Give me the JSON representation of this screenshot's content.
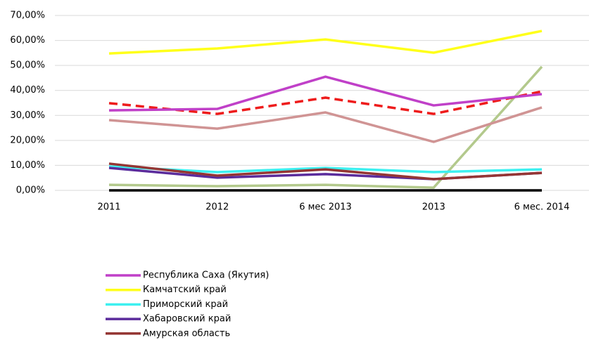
{
  "chart_data": {
    "type": "line",
    "categories": [
      "2011",
      "2012",
      "6 мес 2013",
      "2013",
      "6 мес. 2014"
    ],
    "ylim": [
      0,
      70
    ],
    "yticks": [
      {
        "value": 0,
        "label": "0,00%"
      },
      {
        "value": 10,
        "label": "10,00%"
      },
      {
        "value": 20,
        "label": "20,00%"
      },
      {
        "value": 30,
        "label": "30,00%"
      },
      {
        "value": 40,
        "label": "40,00%"
      },
      {
        "value": 50,
        "label": "50,00%"
      },
      {
        "value": 60,
        "label": "60,00%"
      },
      {
        "value": 70,
        "label": "70,00%"
      }
    ],
    "grid": true,
    "series": [
      {
        "color": "#000000",
        "values": [
          0,
          0,
          0,
          0,
          0
        ]
      },
      {
        "color": "#b3c98c",
        "values": [
          2.2,
          1.7,
          2.2,
          1.1,
          49.5
        ]
      },
      {
        "color": "#d09494",
        "values": [
          28.1,
          24.7,
          31.2,
          19.4,
          33.2
        ]
      },
      {
        "color": "#ee1c1c",
        "dash": true,
        "values": [
          34.9,
          30.6,
          37.1,
          30.6,
          39.6
        ]
      },
      {
        "name": "Республика Саха (Якутия)",
        "color": "#c040c8",
        "values": [
          32.0,
          32.6,
          45.5,
          34.0,
          38.5
        ]
      },
      {
        "name": "Камчатский край",
        "color": "#ffff1a",
        "values": [
          54.8,
          56.8,
          60.4,
          55.1,
          63.8
        ]
      },
      {
        "name": "Приморский край",
        "color": "#3ef0f0",
        "values": [
          9.6,
          7.3,
          9.0,
          7.3,
          8.4
        ]
      },
      {
        "name": "Хабаровский край",
        "color": "#5b2c9c",
        "values": [
          9.0,
          5.1,
          6.5,
          4.5,
          7.0
        ]
      },
      {
        "name": "Амурская область",
        "color": "#943634",
        "values": [
          10.7,
          5.9,
          8.4,
          4.5,
          7.0
        ]
      }
    ]
  }
}
